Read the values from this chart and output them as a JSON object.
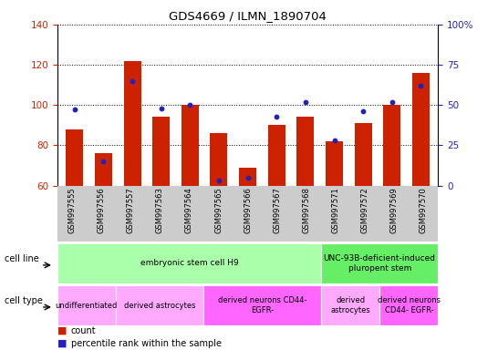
{
  "title": "GDS4669 / ILMN_1890704",
  "samples": [
    "GSM997555",
    "GSM997556",
    "GSM997557",
    "GSM997563",
    "GSM997564",
    "GSM997565",
    "GSM997566",
    "GSM997567",
    "GSM997568",
    "GSM997571",
    "GSM997572",
    "GSM997569",
    "GSM997570"
  ],
  "count_values": [
    88,
    76,
    122,
    94,
    100,
    86,
    69,
    90,
    94,
    82,
    91,
    100,
    116
  ],
  "percentile_values": [
    47,
    15,
    65,
    48,
    50,
    3,
    5,
    43,
    52,
    28,
    46,
    52,
    62
  ],
  "ylim_left": [
    60,
    140
  ],
  "ylim_right": [
    0,
    100
  ],
  "yticks_left": [
    60,
    80,
    100,
    120,
    140
  ],
  "yticks_right": [
    0,
    25,
    50,
    75,
    100
  ],
  "bar_color": "#CC2200",
  "dot_color": "#2222BB",
  "cell_line_groups": [
    {
      "label": "embryonic stem cell H9",
      "start": 0,
      "end": 9,
      "color": "#AAFFAA"
    },
    {
      "label": "UNC-93B-deficient-induced\npluropent stem",
      "start": 9,
      "end": 13,
      "color": "#66EE66"
    }
  ],
  "cell_type_groups": [
    {
      "label": "undifferentiated",
      "start": 0,
      "end": 2,
      "color": "#FFAAFF"
    },
    {
      "label": "derived astrocytes",
      "start": 2,
      "end": 5,
      "color": "#FFAAFF"
    },
    {
      "label": "derived neurons CD44-\nEGFR-",
      "start": 5,
      "end": 9,
      "color": "#FF66FF"
    },
    {
      "label": "derived\nastrocytes",
      "start": 9,
      "end": 11,
      "color": "#FFAAFF"
    },
    {
      "label": "derived neurons\nCD44- EGFR-",
      "start": 11,
      "end": 13,
      "color": "#FF66FF"
    }
  ],
  "legend_count_color": "#CC2200",
  "legend_pct_color": "#2222BB",
  "ylabel_left_color": "#CC2200",
  "ylabel_right_color": "#2222BB",
  "xtick_bg": "#CCCCCC",
  "fig_width": 5.46,
  "fig_height": 3.84,
  "dpi": 100
}
